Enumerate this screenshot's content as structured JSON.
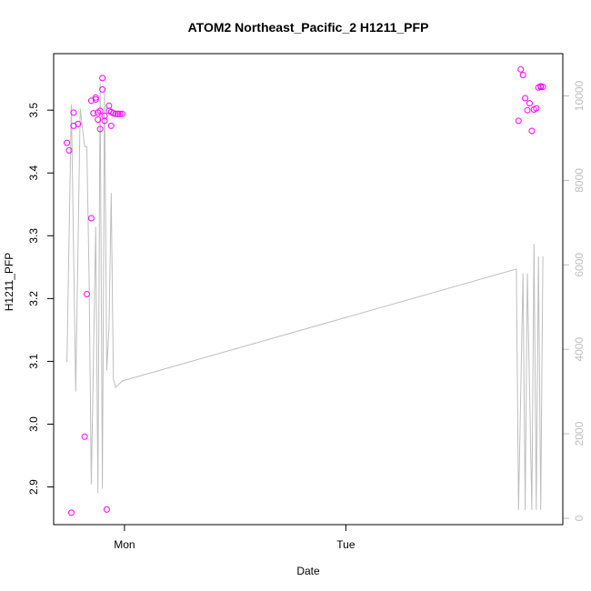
{
  "chart_data": {
    "type": "scatter",
    "title": "ATOM2 Northeast_Pacific_2 H1211_PFP",
    "xlabel": "Date",
    "ylabel": "H1211_PFP",
    "x_ticks": [
      {
        "label": "Mon",
        "value": 2.0
      },
      {
        "label": "Tue",
        "value": 3.0
      }
    ],
    "xlim": [
      1.68,
      3.98
    ],
    "ylim": [
      2.84,
      3.59
    ],
    "y_ticks": [
      2.9,
      3.0,
      3.1,
      3.2,
      3.3,
      3.4,
      3.5
    ],
    "y2lim": [
      -150,
      11000
    ],
    "y2_ticks": [
      0,
      2000,
      4000,
      6000,
      8000,
      10000
    ],
    "colors": {
      "points": "#ff00ff",
      "line": "#bebebe",
      "axis": "#000000",
      "axis2": "#bebebe"
    },
    "series": [
      {
        "type": "points",
        "axis": "left",
        "x": [
          1.74,
          1.75,
          1.76,
          1.77,
          1.77,
          1.79,
          1.82,
          1.83,
          1.85,
          1.85,
          1.86,
          1.87,
          1.87,
          1.88,
          1.88,
          1.89,
          1.89,
          1.9,
          1.9,
          1.91,
          1.91,
          1.92,
          1.93,
          1.93,
          1.94,
          1.94,
          1.95,
          1.96,
          1.97,
          1.97,
          1.98,
          1.99,
          3.78,
          3.79,
          3.8,
          3.81,
          3.82,
          3.83,
          3.84,
          3.85,
          3.86,
          3.87,
          3.88,
          3.88,
          3.89
        ],
        "y": [
          3.448,
          3.436,
          2.859,
          3.475,
          3.496,
          3.478,
          2.98,
          3.207,
          3.328,
          3.515,
          3.495,
          3.52,
          3.517,
          3.485,
          3.496,
          3.47,
          3.499,
          3.533,
          3.551,
          3.483,
          3.491,
          2.864,
          3.499,
          3.507,
          3.475,
          3.497,
          3.495,
          3.494,
          3.494,
          3.494,
          3.494,
          3.494,
          3.483,
          3.565,
          3.556,
          3.519,
          3.5,
          3.511,
          3.467,
          3.501,
          3.503,
          3.536,
          3.538,
          3.537,
          3.537
        ]
      },
      {
        "type": "line",
        "axis": "right",
        "x": [
          1.74,
          1.76,
          1.78,
          1.8,
          1.82,
          1.83,
          1.84,
          1.85,
          1.87,
          1.88,
          1.89,
          1.9,
          1.91,
          1.92,
          1.93,
          1.94,
          1.95,
          1.96,
          1.97,
          1.98,
          1.99,
          3.77,
          3.78,
          3.8,
          3.81,
          3.82,
          3.84,
          3.85,
          3.86,
          3.87,
          3.88,
          3.89
        ],
        "y": [
          3700,
          9800,
          3000,
          9700,
          8800,
          8800,
          5700,
          800,
          6900,
          600,
          10300,
          700,
          10200,
          3500,
          4500,
          7700,
          3300,
          3100,
          3150,
          3200,
          3250,
          5900,
          200,
          5800,
          200,
          5800,
          200,
          6500,
          200,
          6200,
          200,
          6200
        ]
      }
    ]
  }
}
